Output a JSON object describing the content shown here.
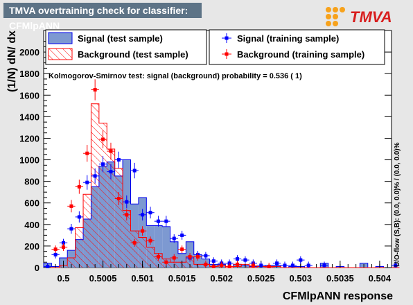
{
  "title": "TMVA overtraining check for classifier: CFMlpANN",
  "logo_text": "TMVA",
  "colors": {
    "signal_fill": "#7d99d1",
    "signal_line": "#0000ee",
    "background_line": "#ff0000",
    "signal_marker": "#0000ff",
    "background_marker": "#ff0000"
  },
  "legend": {
    "signal_test": "Signal (test sample)",
    "background_test": "Background (test sample)",
    "signal_train": "Signal (training sample)",
    "background_train": "Background (training sample)"
  },
  "ks_text": "Kolmogorov-Smirnov test: signal (background) probability = 0.536 (    1)",
  "overflow_note": "U/O-flow (S,B): (0.0, 0.0)% / (0.0, 0.0)%",
  "chart_data": {
    "type": "histogram",
    "title": "TMVA overtraining check for classifier: CFMlpANN",
    "xlabel": "CFMlpANN response",
    "ylabel": "(1/N) dN/ dx",
    "xlim": [
      0.49975,
      0.50415
    ],
    "ylim": [
      0,
      2200
    ],
    "x_ticks": [
      0.5,
      0.5005,
      0.501,
      0.5015,
      0.502,
      0.5025,
      0.503,
      0.5035,
      0.504
    ],
    "x_tick_labels": [
      "0.5",
      "0.5005",
      "0.501",
      "0.5015",
      "0.502",
      "0.5025",
      "0.503",
      "0.5035",
      "0.504"
    ],
    "y_ticks": [
      0,
      200,
      400,
      600,
      800,
      1000,
      1200,
      1400,
      1600,
      1800,
      2000
    ],
    "bin_edges_start": 0.49975,
    "bin_width": 0.0001,
    "series": [
      {
        "name": "Signal (test sample)",
        "style": "filled",
        "values": [
          40,
          10,
          90,
          160,
          260,
          450,
          750,
          940,
          980,
          850,
          1000,
          590,
          650,
          390,
          390,
          380,
          240,
          130,
          240,
          120,
          80,
          30,
          30,
          0,
          30,
          20,
          10,
          10,
          20,
          20,
          0,
          10,
          10,
          0,
          0,
          40,
          0,
          10,
          0,
          0,
          40,
          0,
          10,
          0,
          0
        ]
      },
      {
        "name": "Background (test sample)",
        "style": "hatched",
        "values": [
          0,
          0,
          20,
          90,
          370,
          680,
          1520,
          1340,
          1100,
          920,
          530,
          340,
          280,
          190,
          130,
          80,
          50,
          50,
          100,
          30,
          30,
          10,
          20,
          0,
          10,
          30,
          0,
          10,
          0,
          10,
          0,
          0,
          0,
          0,
          0,
          0,
          0,
          0,
          0,
          0,
          0,
          0,
          0,
          0,
          0
        ]
      },
      {
        "name": "Signal (training sample)",
        "style": "points",
        "values": [
          10,
          120,
          230,
          360,
          470,
          790,
          850,
          960,
          890,
          1000,
          610,
          900,
          490,
          510,
          430,
          430,
          270,
          300,
          90,
          120,
          110,
          60,
          40,
          40,
          80,
          70,
          40,
          20,
          0,
          40,
          20,
          20,
          70,
          20,
          0,
          20,
          0,
          0,
          0,
          0,
          0,
          0,
          0,
          0,
          20
        ]
      },
      {
        "name": "Background (training sample)",
        "style": "points",
        "values": [
          0,
          170,
          190,
          570,
          750,
          1060,
          1650,
          1190,
          1080,
          640,
          490,
          230,
          340,
          250,
          100,
          50,
          90,
          170,
          100,
          100,
          30,
          10,
          20,
          10,
          30,
          0,
          20,
          0,
          10,
          0,
          0,
          0,
          0,
          0,
          0,
          0,
          0,
          0,
          0,
          0,
          0,
          0,
          0,
          0,
          0
        ]
      }
    ]
  }
}
